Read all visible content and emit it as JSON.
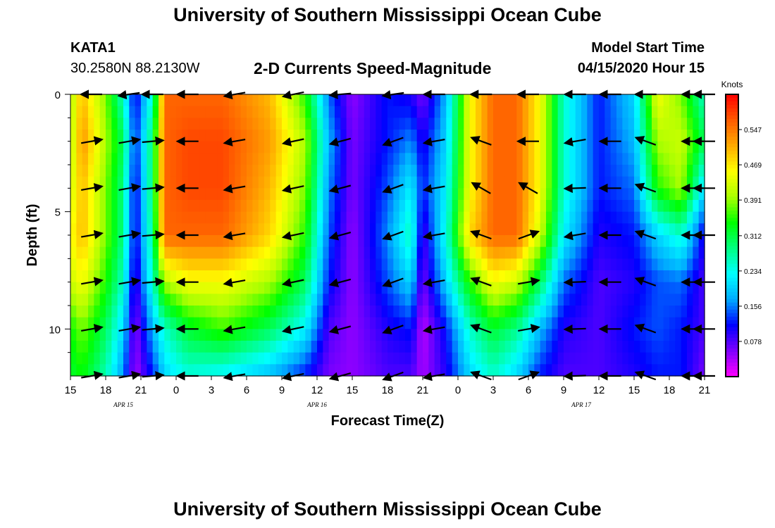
{
  "header": {
    "title": "University of Southern Mississippi Ocean Cube",
    "station_id": "KATA1",
    "coordinates": "30.2580N 88.2130W",
    "subtitle": "2-D Currents Speed-Magnitude",
    "model_start_label": "Model Start Time",
    "model_start_value": "04/15/2020 Hour 15"
  },
  "footer": {
    "title": "University of Southern Mississippi Ocean Cube"
  },
  "chart_data": {
    "type": "heatmap",
    "title": "2-D Currents Speed-Magnitude",
    "xlabel": "Forecast Time(Z)",
    "ylabel": "Depth (ft)",
    "x_hours": [
      0,
      3,
      6,
      9,
      12,
      15,
      18,
      21,
      24,
      27,
      30,
      33,
      36,
      39,
      42,
      45,
      48,
      51,
      54
    ],
    "x_tick_labels": [
      "15",
      "18",
      "21",
      "0",
      "3",
      "6",
      "9",
      "12",
      "15",
      "18",
      "21",
      "0",
      "3",
      "6",
      "9",
      "12",
      "15",
      "18",
      "21"
    ],
    "date_labels": [
      {
        "text": "APR 15",
        "hour": 4.5
      },
      {
        "text": "APR 16",
        "hour": 21
      },
      {
        "text": "APR 17",
        "hour": 43.5
      }
    ],
    "xlim": [
      0,
      54
    ],
    "ylim": [
      0,
      12
    ],
    "y_tick_labels": [
      "0",
      "5",
      "10"
    ],
    "y_major_ticks": [
      0,
      5,
      10
    ],
    "y_minor_ticks": [
      1,
      2,
      3,
      4,
      6,
      7,
      8,
      9,
      11
    ],
    "colorbar": {
      "label": "Knots",
      "min": 0.0,
      "max": 0.625,
      "tick_values": [
        0.078,
        0.156,
        0.234,
        0.312,
        0.391,
        0.469,
        0.547
      ],
      "tick_labels": [
        "0.078",
        "0.156",
        "0.234",
        "0.312",
        "0.391",
        "0.469",
        "0.547"
      ]
    },
    "depths": [
      0,
      2,
      4,
      6,
      8,
      10,
      12
    ],
    "speed_key_hours": [
      0,
      1,
      3,
      4.5,
      5.5,
      7,
      8,
      10,
      13,
      17,
      20,
      22,
      24,
      27,
      29,
      30,
      32,
      34,
      36,
      38,
      40,
      42,
      45,
      48,
      50,
      52,
      54
    ],
    "speed_knots": [
      [
        0.4,
        0.5,
        0.38,
        0.25,
        0.1,
        0.25,
        0.56,
        0.56,
        0.56,
        0.5,
        0.35,
        0.15,
        0.05,
        0.12,
        0.1,
        0.06,
        0.18,
        0.45,
        0.56,
        0.56,
        0.45,
        0.25,
        0.12,
        0.2,
        0.45,
        0.38,
        0.25
      ],
      [
        0.4,
        0.53,
        0.4,
        0.3,
        0.12,
        0.3,
        0.56,
        0.58,
        0.58,
        0.52,
        0.4,
        0.18,
        0.06,
        0.12,
        0.16,
        0.1,
        0.2,
        0.45,
        0.56,
        0.56,
        0.45,
        0.25,
        0.12,
        0.18,
        0.4,
        0.42,
        0.3
      ],
      [
        0.42,
        0.5,
        0.38,
        0.28,
        0.1,
        0.3,
        0.56,
        0.58,
        0.58,
        0.5,
        0.38,
        0.16,
        0.06,
        0.14,
        0.22,
        0.12,
        0.22,
        0.45,
        0.56,
        0.56,
        0.45,
        0.25,
        0.12,
        0.15,
        0.35,
        0.4,
        0.2
      ],
      [
        0.45,
        0.5,
        0.38,
        0.28,
        0.1,
        0.28,
        0.56,
        0.56,
        0.56,
        0.48,
        0.35,
        0.14,
        0.05,
        0.16,
        0.26,
        0.08,
        0.24,
        0.48,
        0.56,
        0.56,
        0.42,
        0.22,
        0.1,
        0.12,
        0.2,
        0.25,
        0.1
      ],
      [
        0.42,
        0.45,
        0.35,
        0.25,
        0.08,
        0.25,
        0.4,
        0.45,
        0.45,
        0.4,
        0.3,
        0.12,
        0.05,
        0.14,
        0.2,
        0.06,
        0.2,
        0.35,
        0.45,
        0.42,
        0.3,
        0.15,
        0.08,
        0.1,
        0.14,
        0.15,
        0.08
      ],
      [
        0.34,
        0.38,
        0.3,
        0.2,
        0.05,
        0.18,
        0.25,
        0.32,
        0.36,
        0.3,
        0.22,
        0.08,
        0.05,
        0.1,
        0.12,
        0.03,
        0.12,
        0.25,
        0.32,
        0.28,
        0.18,
        0.1,
        0.08,
        0.12,
        0.14,
        0.12,
        0.08
      ],
      [
        0.32,
        0.34,
        0.26,
        0.16,
        0.04,
        0.12,
        0.2,
        0.24,
        0.22,
        0.18,
        0.12,
        0.06,
        0.05,
        0.08,
        0.08,
        0.04,
        0.1,
        0.2,
        0.25,
        0.2,
        0.12,
        0.08,
        0.08,
        0.1,
        0.12,
        0.12,
        0.06
      ]
    ],
    "vector_hours": [
      1.8,
      5,
      7,
      10,
      14,
      19,
      23,
      27.5,
      31,
      35,
      39,
      43,
      46,
      49,
      53,
      54
    ],
    "vector_depths": [
      0,
      2,
      4,
      6,
      8,
      10,
      12
    ],
    "vector_angles_deg": [
      [
        180,
        188,
        180,
        180,
        190,
        192,
        185,
        188,
        180,
        180,
        180,
        180,
        180,
        180,
        180,
        180
      ],
      [
        10,
        10,
        5,
        180,
        190,
        192,
        195,
        200,
        190,
        160,
        180,
        190,
        180,
        160,
        180,
        180
      ],
      [
        10,
        10,
        5,
        180,
        190,
        192,
        195,
        200,
        190,
        150,
        150,
        182,
        180,
        160,
        180,
        180
      ],
      [
        10,
        10,
        5,
        180,
        190,
        192,
        195,
        200,
        190,
        160,
        20,
        190,
        180,
        160,
        180,
        180
      ],
      [
        10,
        10,
        5,
        180,
        190,
        192,
        195,
        200,
        190,
        160,
        10,
        182,
        180,
        160,
        180,
        180
      ],
      [
        10,
        10,
        5,
        180,
        190,
        192,
        195,
        200,
        190,
        160,
        10,
        182,
        180,
        160,
        180,
        180
      ],
      [
        10,
        10,
        5,
        180,
        190,
        192,
        195,
        200,
        190,
        160,
        20,
        182,
        180,
        160,
        180,
        180
      ]
    ]
  }
}
